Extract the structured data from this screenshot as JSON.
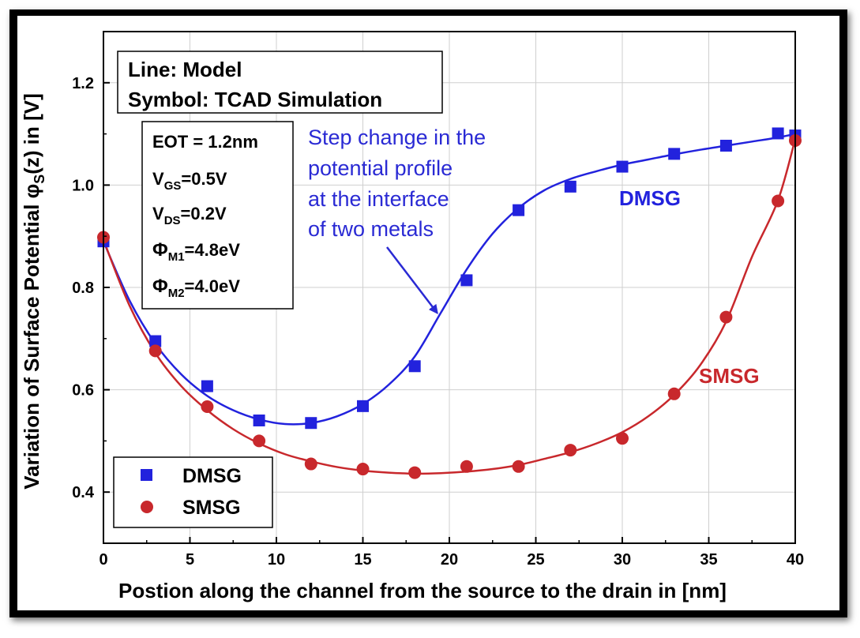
{
  "colors": {
    "dmsg": "#2222dd",
    "smsg": "#c8282c",
    "annotation": "#2a2ad4",
    "frame": "#000000"
  },
  "chart_data": {
    "type": "line",
    "title": "",
    "xlabel": "Postion along the channel from the source to the drain in [nm]",
    "ylabel_prefix": "Variation of Surface Potential φ",
    "ylabel_sub": "S",
    "ylabel_suffix": "(z) in [V]",
    "xlim": [
      0,
      40
    ],
    "ylim": [
      0.3,
      1.3
    ],
    "xticks": [
      0,
      5,
      10,
      15,
      20,
      25,
      30,
      35,
      40
    ],
    "yticks": [
      0.4,
      0.6,
      0.8,
      1.0,
      1.2
    ],
    "ytick_labels": [
      "0.4",
      "0.6",
      "0.8",
      "1.0",
      "1.2"
    ],
    "grid": true,
    "legend_position": "bottom-left",
    "series": [
      {
        "name": "DMSG",
        "marker": "square",
        "line_x": [
          0,
          1.5,
          3,
          4.5,
          6,
          7.5,
          9,
          10.5,
          12,
          13.5,
          15,
          16.5,
          18,
          19.5,
          21,
          22.5,
          24,
          25.5,
          27,
          28.5,
          30,
          31.5,
          33,
          34.5,
          36,
          37.5,
          39,
          40
        ],
        "line_y": [
          0.89,
          0.775,
          0.69,
          0.63,
          0.588,
          0.56,
          0.542,
          0.533,
          0.535,
          0.548,
          0.572,
          0.61,
          0.665,
          0.75,
          0.835,
          0.905,
          0.955,
          0.99,
          1.012,
          1.027,
          1.04,
          1.05,
          1.06,
          1.069,
          1.077,
          1.085,
          1.093,
          1.1
        ],
        "points_x": [
          0,
          3,
          6,
          9,
          12,
          15,
          18,
          21,
          24,
          27,
          30,
          33,
          36,
          39,
          40
        ],
        "points_y": [
          0.89,
          0.695,
          0.607,
          0.54,
          0.535,
          0.568,
          0.646,
          0.814,
          0.951,
          0.997,
          1.036,
          1.061,
          1.077,
          1.101,
          1.097
        ]
      },
      {
        "name": "SMSG",
        "marker": "circle",
        "line_x": [
          0,
          1.5,
          3,
          4.5,
          6,
          7.5,
          9,
          10.5,
          12,
          13.5,
          15,
          16.5,
          18,
          19.5,
          21,
          22.5,
          24,
          25.5,
          27,
          28.5,
          30,
          31.5,
          33,
          34.5,
          36,
          37.5,
          39,
          40
        ],
        "line_y": [
          0.893,
          0.765,
          0.672,
          0.607,
          0.56,
          0.523,
          0.495,
          0.474,
          0.46,
          0.449,
          0.442,
          0.438,
          0.436,
          0.437,
          0.44,
          0.445,
          0.453,
          0.465,
          0.478,
          0.495,
          0.517,
          0.548,
          0.59,
          0.648,
          0.733,
          0.86,
          0.97,
          1.09
        ],
        "points_x": [
          0,
          3,
          6,
          9,
          12,
          15,
          18,
          21,
          24,
          27,
          30,
          33,
          36,
          39,
          40
        ],
        "points_y": [
          0.898,
          0.676,
          0.567,
          0.5,
          0.455,
          0.445,
          0.438,
          0.45,
          0.45,
          0.482,
          0.505,
          0.592,
          0.742,
          0.969,
          1.087
        ]
      }
    ],
    "model_box": {
      "line1": "Line: Model",
      "line2": "Symbol: TCAD Simulation"
    },
    "params": [
      {
        "base": "EOT = 1.2nm",
        "sub": "",
        "tail": ""
      },
      {
        "base": "V",
        "sub": "GS",
        "tail": "=0.5V"
      },
      {
        "base": "V",
        "sub": "DS",
        "tail": "=0.2V"
      },
      {
        "base": "Φ",
        "sub": "M1",
        "tail": "=4.8eV"
      },
      {
        "base": "Φ",
        "sub": "M2",
        "tail": "=4.0eV"
      }
    ],
    "annotation": {
      "lines": [
        "Step change in the",
        "potential profile",
        "at the interface",
        "of two metals"
      ],
      "arrow_target_x": 19.3,
      "arrow_target_y": 0.75
    },
    "series_labels": {
      "dmsg": "DMSG",
      "smsg": "SMSG"
    },
    "legend": {
      "dmsg": "DMSG",
      "smsg": "SMSG"
    }
  }
}
